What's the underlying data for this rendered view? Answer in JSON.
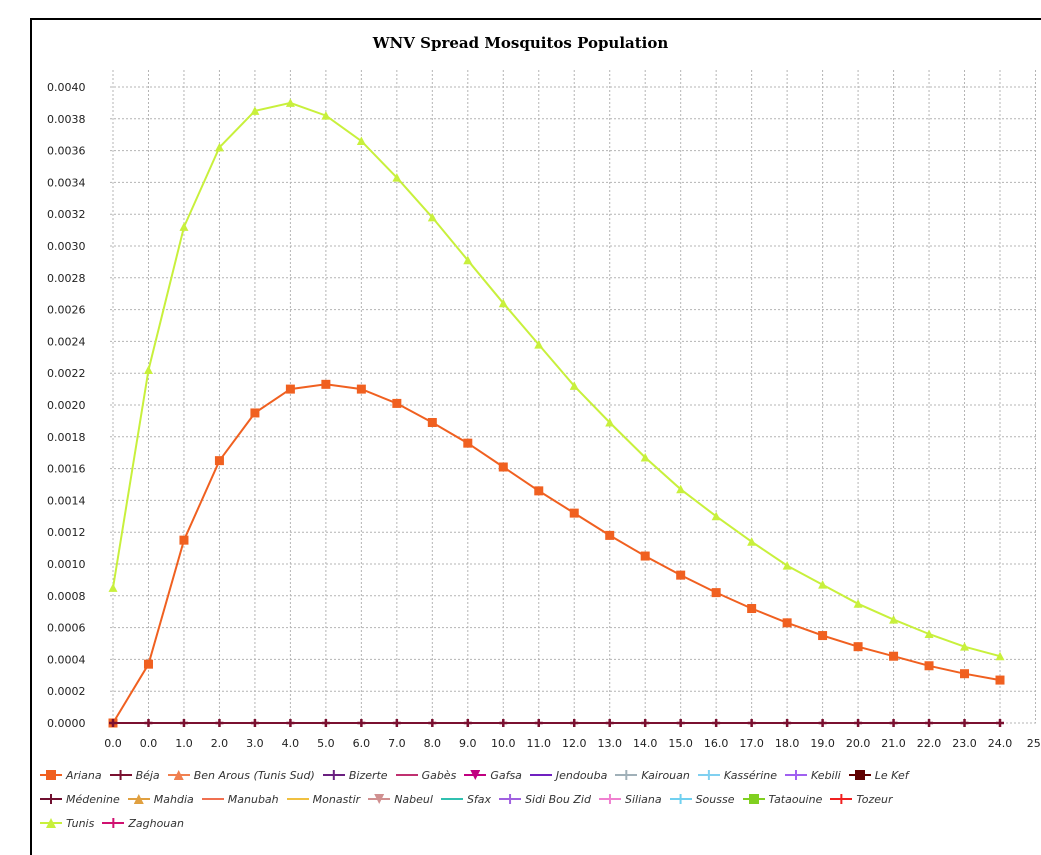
{
  "chart_data": {
    "type": "line",
    "title": "WNV Spread Mosquitos Population",
    "xlabel": "",
    "ylabel": "",
    "x_tick_labels": [
      "0.0",
      "0.0",
      "1.0",
      "2.0",
      "3.0",
      "4.0",
      "5.0",
      "6.0",
      "7.0",
      "8.0",
      "9.0",
      "10.0",
      "11.0",
      "12.0",
      "13.0",
      "14.0",
      "15.0",
      "16.0",
      "17.0",
      "18.0",
      "19.0",
      "20.0",
      "21.0",
      "22.0",
      "23.0",
      "24.0",
      "25."
    ],
    "y_tick_labels": [
      "0.0000",
      "0.0002",
      "0.0004",
      "0.0006",
      "0.0008",
      "0.0010",
      "0.0012",
      "0.0014",
      "0.0016",
      "0.0018",
      "0.0020",
      "0.0022",
      "0.0024",
      "0.0026",
      "0.0028",
      "0.0030",
      "0.0032",
      "0.0034",
      "0.0036",
      "0.0038",
      "0.0040"
    ],
    "ylim": [
      0,
      0.004
    ],
    "grid": true,
    "legend_position": "bottom",
    "series": [
      {
        "name": "Tunis",
        "color": "#c8f03c",
        "marker": "triangle",
        "values": [
          0.00085,
          0.00222,
          0.00312,
          0.00362,
          0.00385,
          0.0039,
          0.00382,
          0.00366,
          0.00343,
          0.00318,
          0.00291,
          0.00264,
          0.00238,
          0.00212,
          0.00189,
          0.00167,
          0.00147,
          0.0013,
          0.00114,
          0.00099,
          0.00087,
          0.00075,
          0.00065,
          0.00056,
          0.00048,
          0.00042
        ]
      },
      {
        "name": "Ariana",
        "color": "#f06020",
        "marker": "square",
        "values": [
          0.0,
          0.00037,
          0.00115,
          0.00165,
          0.00195,
          0.0021,
          0.00213,
          0.0021,
          0.00201,
          0.00189,
          0.00176,
          0.00161,
          0.00146,
          0.00132,
          0.00118,
          0.00105,
          0.00093,
          0.00082,
          0.00072,
          0.00063,
          0.00055,
          0.00048,
          0.00042,
          0.00036,
          0.00031,
          0.00027
        ]
      },
      {
        "name": "Béja",
        "color": "#7a1030",
        "marker": "plus",
        "values": [
          0,
          0,
          0,
          0,
          0,
          0,
          0,
          0,
          0,
          0,
          0,
          0,
          0,
          0,
          0,
          0,
          0,
          0,
          0,
          0,
          0,
          0,
          0,
          0,
          0,
          0
        ]
      }
    ],
    "legend": [
      [
        {
          "label": "Ariana",
          "color": "#f06020",
          "shape": "square"
        },
        {
          "label": "Béja",
          "color": "#7a1030",
          "shape": "plus"
        },
        {
          "label": "Ben Arous (Tunis Sud)",
          "color": "#f08050",
          "shape": "triangle"
        },
        {
          "label": "Bizerte",
          "color": "#6a2080",
          "shape": "plus"
        },
        {
          "label": "Gabès",
          "color": "#c03070",
          "shape": "dash"
        },
        {
          "label": "Gafsa",
          "color": "#c00080",
          "shape": "tdown"
        },
        {
          "label": "Jendouba",
          "color": "#7020c0",
          "shape": "dash"
        },
        {
          "label": "Kairouan",
          "color": "#a0b0b8",
          "shape": "plus"
        },
        {
          "label": "Kassérine",
          "color": "#80d0f0",
          "shape": "plus"
        },
        {
          "label": "Kebili",
          "color": "#a060f0",
          "shape": "plus"
        },
        {
          "label": "Le Kef",
          "color": "#600000",
          "shape": "square"
        }
      ],
      [
        {
          "label": "Médenine",
          "color": "#701030",
          "shape": "plus"
        },
        {
          "label": "Mahdia",
          "color": "#e0a040",
          "shape": "triangle"
        },
        {
          "label": "Manubah",
          "color": "#f07050",
          "shape": "dash"
        },
        {
          "label": "Monastir",
          "color": "#f0c040",
          "shape": "dash"
        },
        {
          "label": "Nabeul",
          "color": "#d09090",
          "shape": "tdown"
        },
        {
          "label": "Sfax",
          "color": "#30c0b0",
          "shape": "dash"
        },
        {
          "label": "Sidi Bou Zid",
          "color": "#a060e0",
          "shape": "plus"
        },
        {
          "label": "Siliana",
          "color": "#f080d0",
          "shape": "plus"
        },
        {
          "label": "Sousse",
          "color": "#70d0f0",
          "shape": "plus"
        },
        {
          "label": "Tataouine",
          "color": "#80d020",
          "shape": "square"
        },
        {
          "label": "Tozeur",
          "color": "#f02020",
          "shape": "plus"
        }
      ],
      [
        {
          "label": "Tunis",
          "color": "#c8f03c",
          "shape": "triangle"
        },
        {
          "label": "Zaghouan",
          "color": "#d01070",
          "shape": "plus"
        }
      ]
    ]
  }
}
